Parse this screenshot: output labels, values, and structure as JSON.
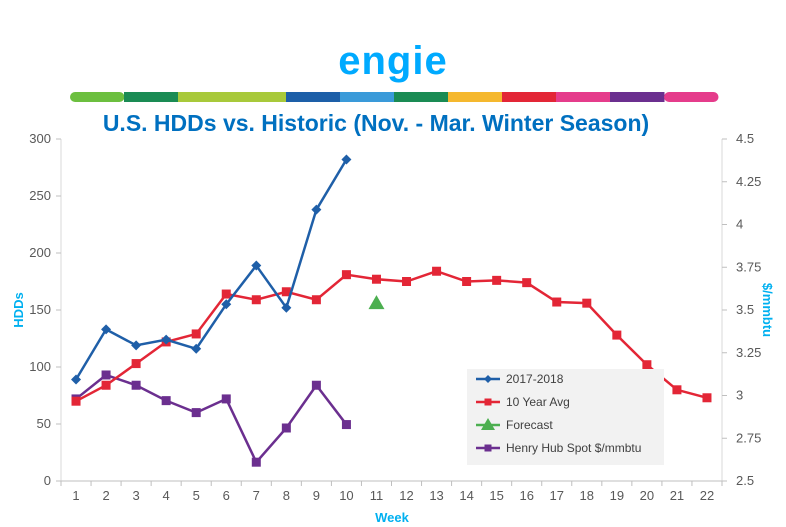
{
  "logo": {
    "text": "engie",
    "color": "#00AAFF",
    "stripe_colors": [
      "#6CBF3F",
      "#1A8B54",
      "#A8C93A",
      "#A8C93A",
      "#1D5FA8",
      "#3A9AD9",
      "#1A8B54",
      "#F5B82E",
      "#E32636",
      "#E53C8B",
      "#6B2F8F",
      "#E53C8B"
    ]
  },
  "chart_data": {
    "type": "line",
    "title": "U.S. HDDs vs. Historic (Nov. - Mar. Winter Season)",
    "title_color": "#0070C0",
    "xlabel": "Week",
    "ylabel": "HDDs",
    "y2label": "$/mmbtu",
    "axis_label_color": "#00B0F0",
    "x": [
      1,
      2,
      3,
      4,
      5,
      6,
      7,
      8,
      9,
      10,
      11,
      12,
      13,
      14,
      15,
      16,
      17,
      18,
      19,
      20,
      21,
      22
    ],
    "ylim": [
      0,
      300
    ],
    "yticks": [
      0,
      50,
      100,
      150,
      200,
      250,
      300
    ],
    "y2lim": [
      2.5,
      4.5
    ],
    "y2ticks": [
      "2.5",
      "2.75",
      "3",
      "3.25",
      "3.5",
      "3.75",
      "4",
      "4.25",
      "4.5"
    ],
    "grid": false,
    "legend_placement": "bottom-right",
    "series": [
      {
        "name": "2017-2018",
        "axis": "left",
        "color": "#1F5FA8",
        "marker": "diamond",
        "x": [
          1,
          2,
          3,
          4,
          5,
          6,
          7,
          8,
          9,
          10
        ],
        "values": [
          89,
          133,
          119,
          124,
          116,
          155,
          189,
          152,
          238,
          282
        ]
      },
      {
        "name": "10 Year Avg",
        "axis": "left",
        "color": "#E32636",
        "marker": "square",
        "x": [
          1,
          2,
          3,
          4,
          5,
          6,
          7,
          8,
          9,
          10,
          11,
          12,
          13,
          14,
          15,
          16,
          17,
          18,
          19,
          20,
          21,
          22
        ],
        "values": [
          70,
          84,
          103,
          122,
          129,
          164,
          159,
          166,
          159,
          181,
          177,
          175,
          184,
          175,
          176,
          174,
          157,
          156,
          128,
          102,
          80,
          73
        ]
      },
      {
        "name": "Forecast",
        "axis": "left",
        "color": "#4CAF50",
        "marker": "triangle",
        "x": [
          11
        ],
        "values": [
          156
        ]
      },
      {
        "name": "Henry Hub Spot $/mmbtu",
        "axis": "right",
        "color": "#6B2F8F",
        "marker": "square",
        "x": [
          1,
          2,
          3,
          4,
          5,
          6,
          7,
          8,
          9,
          10
        ],
        "values": [
          2.98,
          3.12,
          3.06,
          2.97,
          2.9,
          2.98,
          2.61,
          2.81,
          3.06,
          2.83
        ]
      }
    ]
  }
}
